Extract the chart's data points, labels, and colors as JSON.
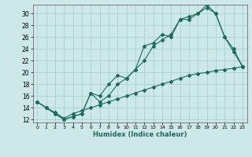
{
  "xlabel": "Humidex (Indice chaleur)",
  "background_color": "#cde8e8",
  "grid_color": "#aacfcf",
  "line_color": "#1a6b5a",
  "xlim": [
    -0.5,
    23.5
  ],
  "ylim": [
    11.5,
    31.5
  ],
  "yticks": [
    12,
    14,
    16,
    18,
    20,
    22,
    24,
    26,
    28,
    30
  ],
  "xticks": [
    0,
    1,
    2,
    3,
    4,
    5,
    6,
    7,
    8,
    9,
    10,
    11,
    12,
    13,
    14,
    15,
    16,
    17,
    18,
    19,
    20,
    21,
    22,
    23
  ],
  "series1_x": [
    0,
    1,
    2,
    3,
    4,
    5,
    6,
    7,
    8,
    9,
    10,
    11,
    12,
    13,
    14,
    15,
    16,
    17,
    18,
    19,
    20,
    21,
    22,
    23
  ],
  "series1_y": [
    15.0,
    14.0,
    13.0,
    12.0,
    12.5,
    13.0,
    16.5,
    16.0,
    18.0,
    19.5,
    19.0,
    20.5,
    24.5,
    25.0,
    26.5,
    26.0,
    29.0,
    29.0,
    30.0,
    31.0,
    30.0,
    26.0,
    23.5,
    21.0
  ],
  "series2_x": [
    0,
    1,
    2,
    3,
    4,
    5,
    6,
    7,
    8,
    9,
    10,
    11,
    12,
    13,
    14,
    15,
    16,
    17,
    18,
    19,
    20,
    21,
    22,
    23
  ],
  "series2_y": [
    15.0,
    14.0,
    13.0,
    12.0,
    12.5,
    13.0,
    16.5,
    15.0,
    16.0,
    18.0,
    19.0,
    20.5,
    22.0,
    24.5,
    25.5,
    26.5,
    29.0,
    29.5,
    30.0,
    31.5,
    30.0,
    26.0,
    24.0,
    21.0
  ],
  "series3_x": [
    0,
    1,
    2,
    3,
    4,
    5,
    6,
    7,
    8,
    9,
    10,
    11,
    12,
    13,
    14,
    15,
    16,
    17,
    18,
    19,
    20,
    21,
    22,
    23
  ],
  "series3_y": [
    15.0,
    14.0,
    13.2,
    12.2,
    13.0,
    13.5,
    14.0,
    14.5,
    15.0,
    15.5,
    16.0,
    16.5,
    17.0,
    17.5,
    18.0,
    18.5,
    19.0,
    19.5,
    19.8,
    20.0,
    20.3,
    20.5,
    20.7,
    21.0
  ]
}
